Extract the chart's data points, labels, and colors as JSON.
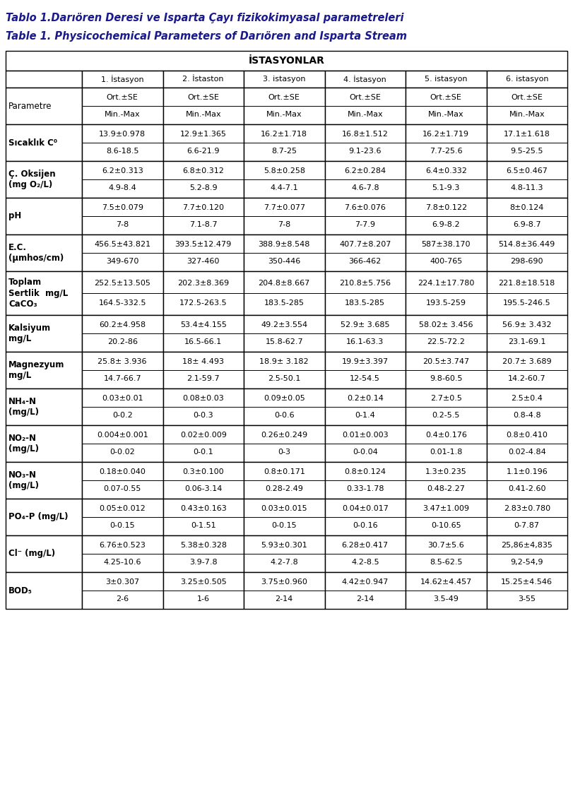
{
  "title1": "Tablo 1.Darıören Deresi ve Isparta Çayı fizikokimyasal parametreleri",
  "title2": "Table 1. Physicochemical Parameters of Darıören and Isparta Stream",
  "header_center": "İSTASYONLAR",
  "col_headers": [
    "1. İstasyon",
    "2. İstaston",
    "3. istasyon",
    "4. İstasyon",
    "5. istasyon",
    "6. istasyon"
  ],
  "param_col_header": "Parametre",
  "rows": [
    {
      "param": "Sıcaklık C⁰",
      "values": [
        "13.9±0.978\n8.6-18.5",
        "12.9±1.365\n6.6-21.9",
        "16.2±1.718\n8.7-25",
        "16.8±1.512\n9.1-23.6",
        "16.2±1.719\n7.7-25.6",
        "17.1±1.618\n9.5-25.5"
      ]
    },
    {
      "param": "Ç. Oksijen\n(mg O₂/L)",
      "values": [
        "6.2±0.313\n4.9-8.4",
        "6.8±0.312\n5.2-8.9",
        "5.8±0.258\n4.4-7.1",
        "6.2±0.284\n4.6-7.8",
        "6.4±0.332\n5.1-9.3",
        "6.5±0.467\n4.8-11.3"
      ]
    },
    {
      "param": "pH",
      "values": [
        "7.5±0.079\n7-8",
        "7.7±0.120\n7.1-8.7",
        "7.7±0.077\n7-8",
        "7.6±0.076\n7-7.9",
        "7.8±0.122\n6.9-8.2",
        "8±0.124\n6.9-8.7"
      ]
    },
    {
      "param": "E.C.\n(μmhos/cm)",
      "values": [
        "456.5±43.821\n349-670",
        "393.5±12.479\n327-460",
        "388.9±8.548\n350-446",
        "407.7±8.207\n366-462",
        "587±38.170\n400-765",
        "514.8±36.449\n298-690"
      ]
    },
    {
      "param": "Toplam\nSertlik  mg/L\nCaCO₃",
      "values": [
        "252.5±13.505\n164.5-332.5",
        "202.3±8.369\n172.5-263.5",
        "204.8±8.667\n183.5-285",
        "210.8±5.756\n183.5-285",
        "224.1±17.780\n193.5-259",
        "221.8±18.518\n195.5-246.5"
      ]
    },
    {
      "param": "Kalsiyum\nmg/L",
      "values": [
        "60.2±4.958\n20.2-86",
        "53.4±4.155\n16.5-66.1",
        "49.2±3.554\n15.8-62.7",
        "52.9± 3.685\n16.1-63.3",
        "58.02± 3.456\n22.5-72.2",
        "56.9± 3.432\n23.1-69.1"
      ]
    },
    {
      "param": "Magnezyum\nmg/L",
      "values": [
        "25.8± 3.936\n14.7-66.7",
        "18± 4.493\n2.1-59.7",
        "18.9± 3.182\n2.5-50.1",
        "19.9±3.397\n12-54.5",
        "20.5±3.747\n9.8-60.5",
        "20.7± 3.689\n14.2-60.7"
      ]
    },
    {
      "param": "NH₄-N\n(mg/L)",
      "values": [
        "0.03±0.01\n0-0.2",
        "0.08±0.03\n0-0.3",
        "0.09±0.05\n0-0.6",
        "0.2±0.14\n0-1.4",
        "2.7±0.5\n0.2-5.5",
        "2.5±0.4\n0.8-4.8"
      ]
    },
    {
      "param": "NO₂-N\n(mg/L)",
      "values": [
        "0.004±0.001\n0-0.02",
        "0.02±0.009\n0-0.1",
        "0.26±0.249\n0-3",
        "0.01±0.003\n0-0.04",
        "0.4±0.176\n0.01-1.8",
        "0.8±0.410\n0.02-4.84"
      ]
    },
    {
      "param": "NO₃-N\n(mg/L)",
      "values": [
        "0.18±0.040\n0.07-0.55",
        "0.3±0.100\n0.06-3.14",
        "0.8±0.171\n0.28-2.49",
        "0.8±0.124\n0.33-1.78",
        "1.3±0.235\n0.48-2.27",
        "1.1±0.196\n0.41-2.60"
      ]
    },
    {
      "param": "PO₄-P (mg/L)",
      "values": [
        "0.05±0.012\n0-0.15",
        "0.43±0.163\n0-1.51",
        "0.03±0.015\n0-0.15",
        "0.04±0.017\n0-0.16",
        "3.47±1.009\n0-10.65",
        "2.83±0.780\n0-7.87"
      ]
    },
    {
      "param": "Cl⁻ (mg/L)",
      "values": [
        "6.76±0.523\n4.25-10.6",
        "5.38±0.328\n3.9-7.8",
        "5.93±0.301\n4.2-7.8",
        "6.28±0.417\n4.2-8.5",
        "30.7±5.6\n8.5-62.5",
        "25,86±4,835\n9,2-54,9"
      ]
    },
    {
      "param": "BOD₅",
      "values": [
        "3±0.307\n2-6",
        "3.25±0.505\n1-6",
        "3.75±0.960\n2-14",
        "4.42±0.947\n2-14",
        "14.62±4.457\n3.5-49",
        "15.25±4.546\n3-55"
      ]
    }
  ],
  "title1_color": "#1a1a8c",
  "title2_color": "#1a1a8c",
  "text_color": "#000000",
  "border_color": "#000000",
  "bg_color": "#ffffff"
}
